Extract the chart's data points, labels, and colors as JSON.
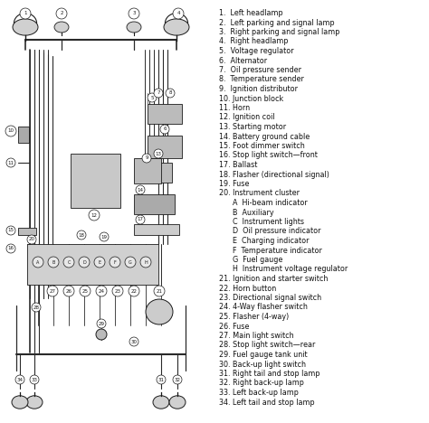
{
  "bg_color": "#ffffff",
  "diagram_bg": "#ffffff",
  "line_color": "#1a1a1a",
  "wire_color": "#2a2a2a",
  "text_color": "#111111",
  "legend_items": [
    "1.  Left headlamp",
    "2.  Left parking and signal lamp",
    "3.  Right parking and signal lamp",
    "4.  Right headlamp",
    "5.  Voltage regulator",
    "6.  Alternator",
    "7.  Oil pressure sender",
    "8.  Temperature sender",
    "9.  Ignition distributor",
    "10. Junction block",
    "11. Horn",
    "12. Ignition coil",
    "13. Starting motor",
    "14. Battery ground cable",
    "15. Foot dimmer switch",
    "16. Stop light switch—front",
    "17. Ballast",
    "18. Flasher (directional signal)",
    "19. Fuse",
    "20. Instrument cluster",
    "      A  Hi-beam indicator",
    "      B  Auxiliary",
    "      C  Instrument lights",
    "      D  Oil pressure indicator",
    "      E  Charging indicator",
    "      F  Temperature indicator",
    "      G  Fuel gauge",
    "      H  Instrument voltage regulator",
    "21. Ignition and starter switch",
    "22. Horn button",
    "23. Directional signal switch",
    "24. 4-Way flasher switch",
    "25. Flasher (4-way)",
    "26. Fuse",
    "27. Main light switch",
    "28. Stop light switch—rear",
    "29. Fuel gauge tank unit",
    "30. Back-up light switch",
    "31. Right tail and stop lamp",
    "32. Right back-up lamp",
    "33. Left back-up lamp",
    "34. Left tail and stop lamp"
  ],
  "font_size_legend": 5.8
}
